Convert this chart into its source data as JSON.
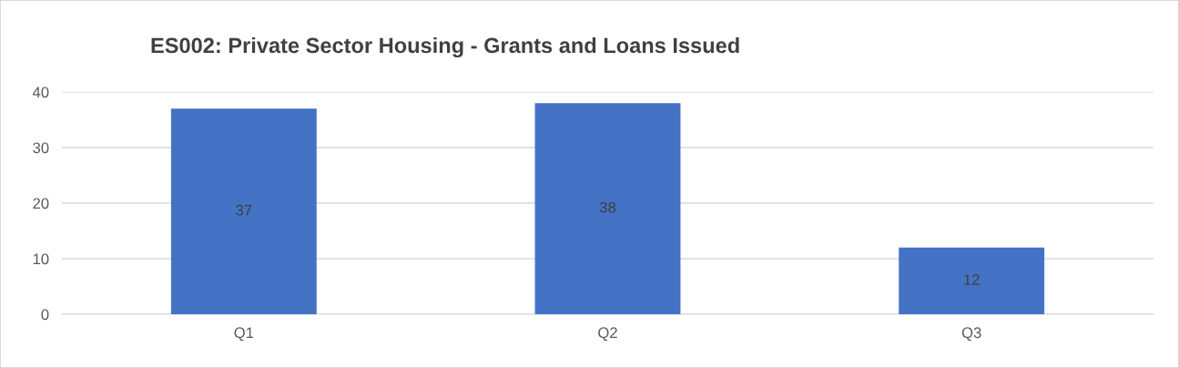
{
  "chart_data": {
    "type": "bar",
    "title": "ES002: Private Sector Housing - Grants and Loans Issued",
    "categories": [
      "Q1",
      "Q2",
      "Q3"
    ],
    "values": [
      37,
      38,
      12
    ],
    "color": "#4472c4",
    "ylim": [
      0,
      40
    ],
    "yticks": [
      0,
      10,
      20,
      30,
      40
    ],
    "grid": "y",
    "data_labels": true
  }
}
